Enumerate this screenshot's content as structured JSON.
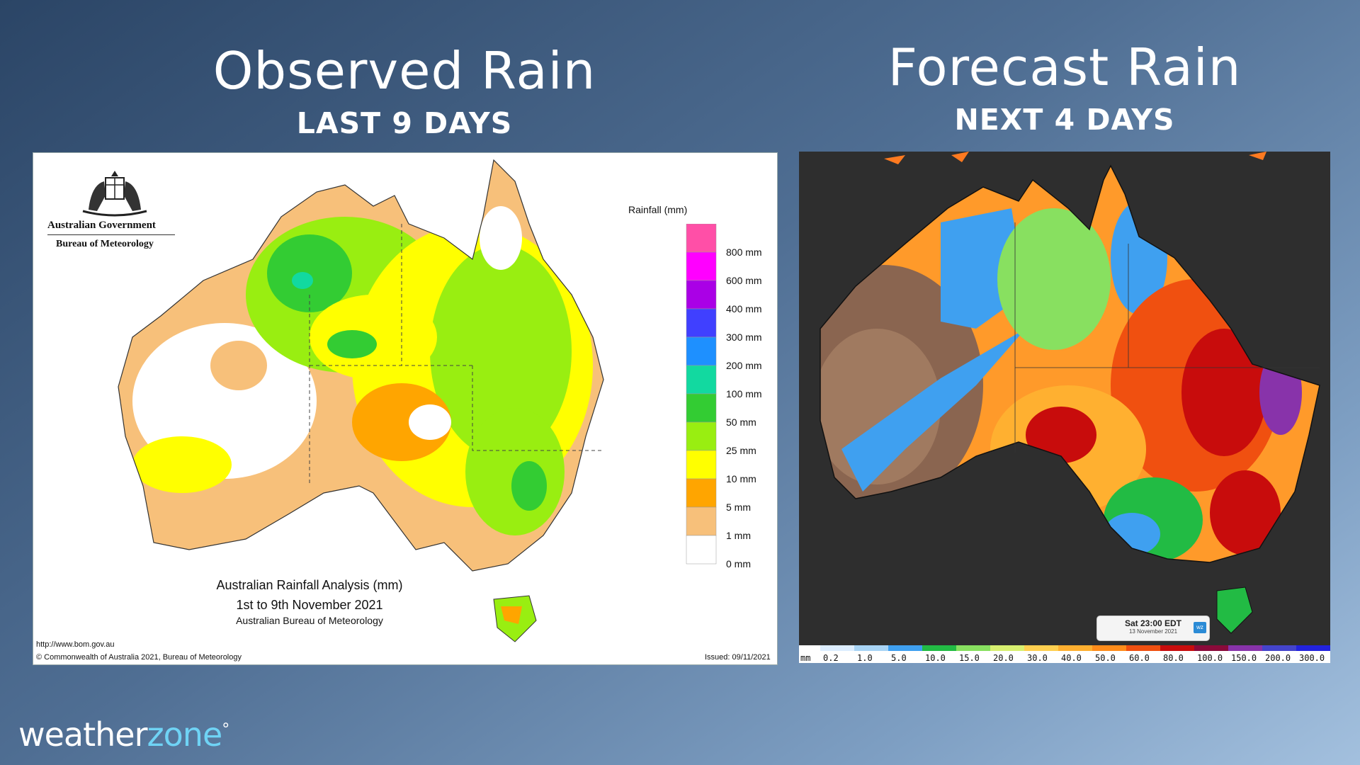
{
  "left_panel": {
    "title": "Observed Rain",
    "subtitle": "LAST 9 DAYS",
    "gov_name": "Australian Government",
    "gov_dept": "Bureau of Meteorology",
    "legend_title": "Rainfall (mm)",
    "legend": [
      {
        "label": "800 mm",
        "color": "#ff4fa7"
      },
      {
        "label": "600 mm",
        "color": "#ff00ff"
      },
      {
        "label": "400 mm",
        "color": "#aa00e6"
      },
      {
        "label": "300 mm",
        "color": "#4040ff"
      },
      {
        "label": "200 mm",
        "color": "#1e90ff"
      },
      {
        "label": "100 mm",
        "color": "#12d9a0"
      },
      {
        "label": "50 mm",
        "color": "#33cc33"
      },
      {
        "label": "25 mm",
        "color": "#99ee11"
      },
      {
        "label": "10 mm",
        "color": "#ffff00"
      },
      {
        "label": "5 mm",
        "color": "#ffa500"
      },
      {
        "label": "1 mm",
        "color": "#f7c07a"
      },
      {
        "label": "0 mm",
        "color": "#ffffff"
      }
    ],
    "caption_line1": "Australian Rainfall Analysis (mm)",
    "caption_line2": "1st to 9th November 2021",
    "caption_line3": "Australian Bureau of Meteorology",
    "url": "http://www.bom.gov.au",
    "copyright": "© Commonwealth of Australia 2021, Bureau of Meteorology",
    "issued": "Issued: 09/11/2021"
  },
  "right_panel": {
    "title": "Forecast Rain",
    "subtitle": "NEXT 4 DAYS",
    "time_label": "Sat 23:00 EDT",
    "time_date": "13 November 2021",
    "badge": "wz",
    "scale_unit": "mm",
    "scale": [
      {
        "label": "0.2",
        "color": "#ddeeff"
      },
      {
        "label": "1.0",
        "color": "#a8d4f5"
      },
      {
        "label": "5.0",
        "color": "#3fa0f0"
      },
      {
        "label": "10.0",
        "color": "#22bb44"
      },
      {
        "label": "15.0",
        "color": "#88e060"
      },
      {
        "label": "20.0",
        "color": "#d8f070"
      },
      {
        "label": "30.0",
        "color": "#ffd050"
      },
      {
        "label": "40.0",
        "color": "#ffb030"
      },
      {
        "label": "50.0",
        "color": "#ff8c1a"
      },
      {
        "label": "60.0",
        "color": "#f05010"
      },
      {
        "label": "80.0",
        "color": "#c80c0c"
      },
      {
        "label": "100.0",
        "color": "#8a0a3a"
      },
      {
        "label": "150.0",
        "color": "#8833aa"
      },
      {
        "label": "200.0",
        "color": "#4444cc"
      },
      {
        "label": "300.0",
        "color": "#2222dd"
      }
    ]
  },
  "brand": {
    "name_a": "weather",
    "name_b": "zone",
    "mark": "°"
  }
}
